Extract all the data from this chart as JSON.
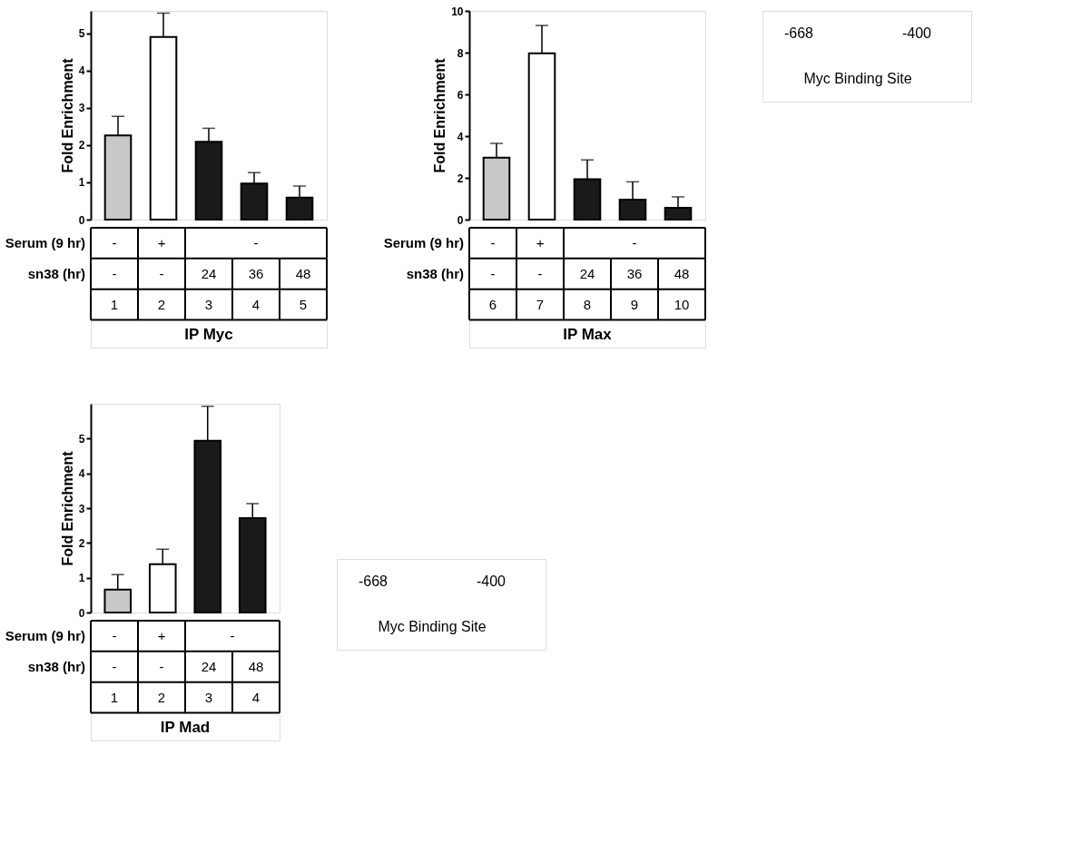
{
  "chart_data": [
    {
      "type": "bar",
      "xlabel": "IP Myc",
      "ylabel": "Fold Enrichment",
      "categories": [
        "1",
        "2",
        "3",
        "4",
        "5"
      ],
      "values": [
        2.26,
        4.9,
        2.09,
        0.97,
        0.59
      ],
      "colors": [
        "#c8c8c8",
        "#ffffff",
        "#1a1a1a",
        "#1a1a1a",
        "#1a1a1a"
      ],
      "errors": [
        [
          2.26,
          2.77
        ],
        [
          4.9,
          5.54
        ],
        [
          2.09,
          2.45
        ],
        [
          0.97,
          1.26
        ],
        [
          0.59,
          0.9
        ]
      ],
      "ylim": [
        0,
        5.6
      ],
      "yticks": [
        0,
        1,
        2,
        3,
        4,
        5
      ],
      "annotations": [
        "Serum (9 hr)",
        "-",
        "+",
        "-",
        "sn38 (hr)",
        "-",
        "-",
        "24",
        "36",
        "48"
      ]
    },
    {
      "type": "bar",
      "xlabel": "IP Max",
      "ylabel": "Fold Enrichment",
      "categories": [
        "6",
        "7",
        "8",
        "9",
        "10"
      ],
      "values": [
        2.97,
        7.97,
        1.94,
        0.96,
        0.57
      ],
      "colors": [
        "#c8c8c8",
        "#ffffff",
        "#1a1a1a",
        "#1a1a1a",
        "#1a1a1a"
      ],
      "errors": [
        [
          2.97,
          3.65
        ],
        [
          7.97,
          9.3
        ],
        [
          1.94,
          2.86
        ],
        [
          0.96,
          1.81
        ],
        [
          0.57,
          1.09
        ]
      ],
      "ylim": [
        0,
        10
      ],
      "yticks": [
        0,
        2,
        4,
        6,
        8,
        10
      ],
      "annotations": [
        "Serum (9 hr)",
        "-",
        "+",
        "-",
        "sn38 (hr)",
        "-",
        "-",
        "24",
        "36",
        "48"
      ]
    },
    {
      "type": "other",
      "annotations": [
        "-668",
        "-400",
        "Myc Binding Site"
      ]
    },
    {
      "type": "bar",
      "xlabel": "IP Mad",
      "ylabel": "Fold Enrichment",
      "categories": [
        "1",
        "2",
        "3",
        "4"
      ],
      "values": [
        0.66,
        1.39,
        4.94,
        2.71
      ],
      "colors": [
        "#c8c8c8",
        "#ffffff",
        "#1a1a1a",
        "#1a1a1a"
      ],
      "errors": [
        [
          0.66,
          1.09
        ],
        [
          1.39,
          1.82
        ],
        [
          4.94,
          5.93
        ],
        [
          2.71,
          3.13
        ]
      ],
      "ylim": [
        0,
        6
      ],
      "yticks": [
        0,
        1,
        2,
        3,
        4,
        5
      ],
      "annotations": [
        "Serum (9 hr)",
        "-",
        "+",
        "-",
        "sn38 (hr)",
        "-",
        "-",
        "24",
        "48"
      ]
    },
    {
      "type": "other",
      "annotations": [
        "-668",
        "-400",
        "Myc Binding Site"
      ]
    }
  ]
}
